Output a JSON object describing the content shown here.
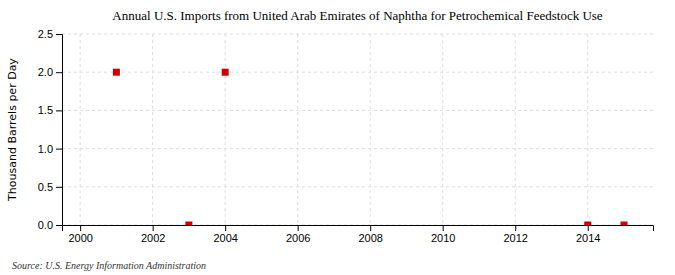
{
  "chart_data": {
    "type": "scatter",
    "title": "Annual U.S. Imports from United Arab Emirates of Naphtha for Petrochemical Feedstock Use",
    "ylabel": "Thousand Barrels per Day",
    "annotations": [
      "Source: U.S. Energy Information Administration"
    ],
    "x": [
      2001,
      2003,
      2004,
      2014,
      2015
    ],
    "values": [
      2.0,
      0.0,
      2.0,
      0.0,
      0.0
    ],
    "color": "#cc0000",
    "marker": "square",
    "xlim": [
      1999.5,
      2015.8
    ],
    "ylim": [
      0.0,
      2.5
    ],
    "xticks": [
      2000,
      2002,
      2004,
      2006,
      2008,
      2010,
      2012,
      2014
    ],
    "yticks": [
      {
        "value": 0.0,
        "label": "0.0"
      },
      0.5,
      {
        "value": 1.0,
        "label": "1.0"
      },
      1.5,
      {
        "value": 2.0,
        "label": "2.0"
      },
      2.5
    ],
    "grid": true
  }
}
